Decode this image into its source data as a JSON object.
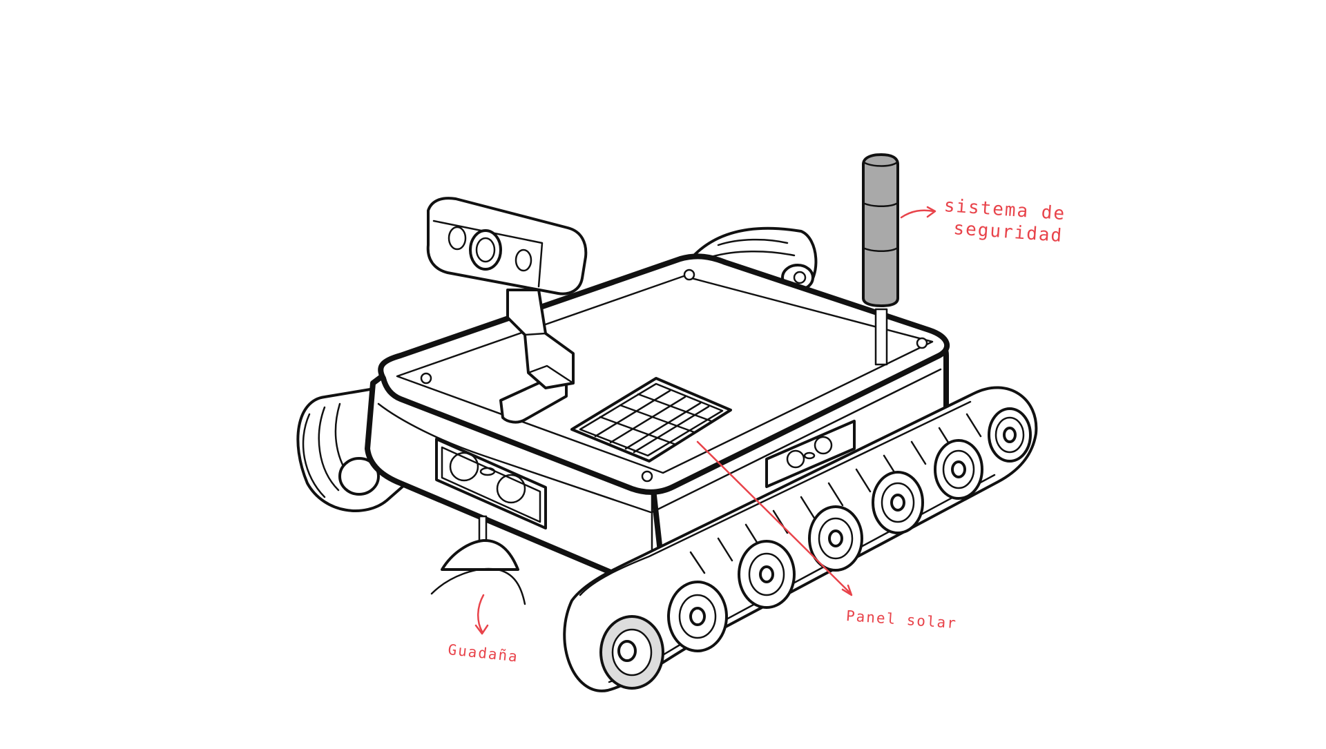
{
  "annotations": {
    "security_system": {
      "line1": "sistema de",
      "line2": "seguridad"
    },
    "solar_panel": "Panel solar",
    "scythe": "Guadaña"
  },
  "colors": {
    "ink": "#111111",
    "annotation": "#e8434a",
    "beacon_fill": "#a9a9a9",
    "wheel_hub_fill": "#dddddd",
    "background": "#ffffff"
  },
  "components": [
    "camera",
    "beacon",
    "solar-panel",
    "ultrasonic-sensor",
    "track",
    "scythe"
  ]
}
